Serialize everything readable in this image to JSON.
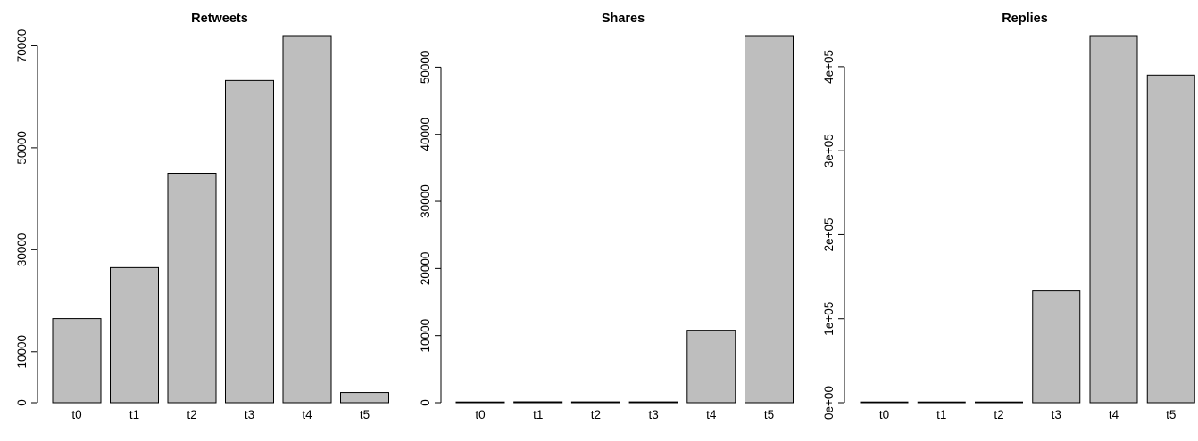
{
  "colors": {
    "bar_fill": "#bebebe",
    "bar_stroke": "#000000",
    "background": "#ffffff"
  },
  "chart_data": [
    {
      "type": "bar",
      "title": "Retweets",
      "categories": [
        "t0",
        "t1",
        "t2",
        "t3",
        "t4",
        "t5"
      ],
      "values": [
        16500,
        26500,
        45000,
        63200,
        72000,
        2000
      ],
      "yticks": [
        0,
        10000,
        30000,
        50000,
        70000
      ],
      "ytick_labels": [
        "0",
        "10000",
        "30000",
        "50000",
        "70000"
      ],
      "ylim": [
        0,
        72000
      ],
      "xlabel": "",
      "ylabel": ""
    },
    {
      "type": "bar",
      "title": "Shares",
      "categories": [
        "t0",
        "t1",
        "t2",
        "t3",
        "t4",
        "t5"
      ],
      "values": [
        20,
        130,
        120,
        120,
        10800,
        54700
      ],
      "yticks": [
        0,
        10000,
        20000,
        30000,
        40000,
        50000
      ],
      "ytick_labels": [
        "0",
        "10000",
        "20000",
        "30000",
        "40000",
        "50000"
      ],
      "ylim": [
        0,
        54700
      ],
      "xlabel": "",
      "ylabel": ""
    },
    {
      "type": "bar",
      "title": "Replies",
      "categories": [
        "t0",
        "t1",
        "t2",
        "t3",
        "t4",
        "t5"
      ],
      "values": [
        200,
        200,
        200,
        133000,
        437000,
        390000
      ],
      "yticks": [
        0,
        100000,
        200000,
        300000,
        400000
      ],
      "ytick_labels": [
        "0e+00",
        "1e+05",
        "2e+05",
        "3e+05",
        "4e+05"
      ],
      "ylim": [
        0,
        437000
      ],
      "xlabel": "",
      "ylabel": ""
    }
  ]
}
